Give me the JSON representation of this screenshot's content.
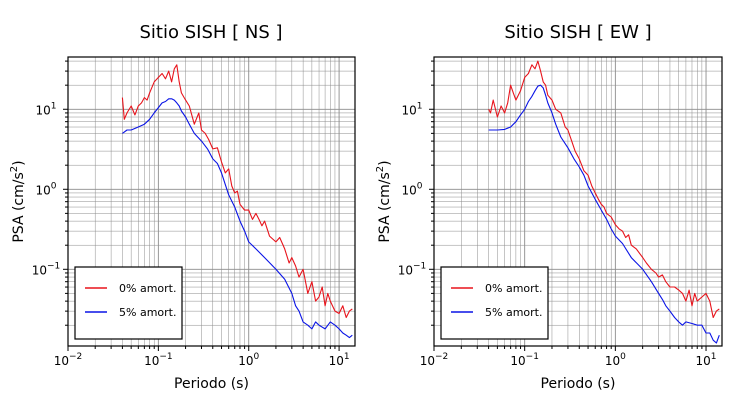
{
  "chart_data": [
    {
      "type": "line",
      "title": "Sitio SISH [ NS ]",
      "xlabel": "Periodo (s)",
      "ylabel_base": "PSA (cm/s",
      "ylabel_sup": "2",
      "ylabel_end": ")",
      "xscale": "log",
      "yscale": "log",
      "xlim": [
        0.01,
        15
      ],
      "ylim": [
        0.011,
        45
      ],
      "grid": true,
      "legend_position": "bottom-left",
      "x_ticks": [
        {
          "base": "10",
          "exp": "−2"
        },
        {
          "base": "10",
          "exp": "−1"
        },
        {
          "base": "10",
          "exp": "0"
        },
        {
          "base": "10",
          "exp": "1"
        }
      ],
      "y_ticks": [
        {
          "base": "10",
          "exp": "−1"
        },
        {
          "base": "10",
          "exp": "0"
        },
        {
          "base": "10",
          "exp": "1"
        }
      ],
      "series": [
        {
          "name": "0% amort.",
          "color": "#e8141c",
          "x": [
            0.04,
            0.042,
            0.045,
            0.05,
            0.055,
            0.06,
            0.065,
            0.07,
            0.075,
            0.08,
            0.09,
            0.1,
            0.11,
            0.12,
            0.13,
            0.14,
            0.15,
            0.16,
            0.17,
            0.18,
            0.2,
            0.22,
            0.25,
            0.28,
            0.3,
            0.33,
            0.36,
            0.4,
            0.45,
            0.5,
            0.55,
            0.6,
            0.65,
            0.7,
            0.75,
            0.8,
            0.9,
            1.0,
            1.1,
            1.2,
            1.3,
            1.4,
            1.5,
            1.7,
            2.0,
            2.2,
            2.5,
            2.8,
            3.0,
            3.3,
            3.6,
            4.0,
            4.5,
            5.0,
            5.5,
            6.0,
            6.5,
            7.0,
            7.5,
            8.0,
            9.0,
            10.0,
            11.0,
            12.0,
            13.0,
            14.0
          ],
          "y": [
            14,
            7.5,
            9,
            11,
            8.5,
            11,
            12,
            14,
            13,
            16,
            22,
            25,
            28,
            24,
            30,
            22,
            32,
            36,
            22,
            16,
            13,
            11,
            6.5,
            9,
            5.5,
            5,
            4.2,
            3.2,
            3.3,
            2.2,
            1.6,
            1.8,
            1.1,
            0.9,
            0.95,
            0.65,
            0.55,
            0.55,
            0.42,
            0.5,
            0.42,
            0.35,
            0.4,
            0.26,
            0.22,
            0.25,
            0.18,
            0.12,
            0.14,
            0.11,
            0.08,
            0.1,
            0.05,
            0.07,
            0.04,
            0.045,
            0.06,
            0.035,
            0.05,
            0.04,
            0.03,
            0.028,
            0.035,
            0.025,
            0.03,
            0.032
          ]
        },
        {
          "name": "5% amort.",
          "color": "#0a14e6",
          "x": [
            0.04,
            0.045,
            0.05,
            0.06,
            0.07,
            0.08,
            0.09,
            0.1,
            0.11,
            0.12,
            0.13,
            0.14,
            0.15,
            0.16,
            0.17,
            0.18,
            0.2,
            0.22,
            0.25,
            0.3,
            0.35,
            0.4,
            0.45,
            0.5,
            0.6,
            0.7,
            0.8,
            0.9,
            1.0,
            1.2,
            1.5,
            2.0,
            2.5,
            3.0,
            3.3,
            3.6,
            4.0,
            4.5,
            5.0,
            5.5,
            6.0,
            7.0,
            8.0,
            9.0,
            10.0,
            11.0,
            12.0,
            13.0,
            14.0
          ],
          "y": [
            5,
            5.5,
            5.5,
            6,
            6.5,
            7.5,
            9,
            10.5,
            12,
            12.5,
            13.5,
            13.5,
            13,
            12,
            11,
            9.5,
            8,
            6.5,
            5,
            4,
            3.2,
            2.4,
            2.1,
            1.6,
            0.85,
            0.6,
            0.4,
            0.3,
            0.22,
            0.18,
            0.14,
            0.1,
            0.075,
            0.05,
            0.035,
            0.03,
            0.022,
            0.02,
            0.018,
            0.022,
            0.02,
            0.018,
            0.022,
            0.02,
            0.018,
            0.016,
            0.015,
            0.014,
            0.015
          ]
        }
      ]
    },
    {
      "type": "line",
      "title": "Sitio SISH [ EW ]",
      "xlabel": "Periodo (s)",
      "ylabel_base": "PSA (cm/s",
      "ylabel_sup": "2",
      "ylabel_end": ")",
      "xscale": "log",
      "yscale": "log",
      "xlim": [
        0.01,
        15
      ],
      "ylim": [
        0.011,
        45
      ],
      "grid": true,
      "legend_position": "bottom-left",
      "x_ticks": [
        {
          "base": "10",
          "exp": "−2"
        },
        {
          "base": "10",
          "exp": "−1"
        },
        {
          "base": "10",
          "exp": "0"
        },
        {
          "base": "10",
          "exp": "1"
        }
      ],
      "y_ticks": [
        {
          "base": "10",
          "exp": "−1"
        },
        {
          "base": "10",
          "exp": "0"
        },
        {
          "base": "10",
          "exp": "1"
        }
      ],
      "series": [
        {
          "name": "0% amort.",
          "color": "#e8141c",
          "x": [
            0.04,
            0.042,
            0.045,
            0.05,
            0.055,
            0.06,
            0.065,
            0.07,
            0.075,
            0.08,
            0.09,
            0.1,
            0.11,
            0.12,
            0.13,
            0.14,
            0.15,
            0.16,
            0.17,
            0.18,
            0.2,
            0.22,
            0.25,
            0.28,
            0.3,
            0.33,
            0.36,
            0.4,
            0.45,
            0.5,
            0.55,
            0.6,
            0.65,
            0.7,
            0.75,
            0.8,
            0.9,
            1.0,
            1.1,
            1.2,
            1.3,
            1.4,
            1.5,
            1.7,
            2.0,
            2.2,
            2.5,
            2.8,
            3.0,
            3.3,
            3.6,
            4.0,
            4.5,
            5.0,
            5.5,
            6.0,
            6.5,
            7.0,
            7.5,
            8.0,
            9.0,
            10.0,
            11.0,
            12.0,
            13.0,
            14.0
          ],
          "y": [
            10,
            9,
            13,
            8,
            11,
            9,
            12,
            20,
            16,
            13,
            17,
            25,
            28,
            36,
            32,
            40,
            30,
            22,
            20,
            15,
            13,
            10,
            9,
            6,
            5.5,
            4,
            3,
            2.4,
            1.7,
            1.5,
            1.1,
            0.9,
            0.75,
            0.65,
            0.6,
            0.5,
            0.45,
            0.36,
            0.32,
            0.3,
            0.25,
            0.27,
            0.2,
            0.18,
            0.14,
            0.12,
            0.1,
            0.09,
            0.08,
            0.085,
            0.07,
            0.06,
            0.06,
            0.055,
            0.05,
            0.04,
            0.055,
            0.035,
            0.05,
            0.04,
            0.045,
            0.05,
            0.04,
            0.025,
            0.03,
            0.032
          ]
        },
        {
          "name": "5% amort.",
          "color": "#0a14e6",
          "x": [
            0.04,
            0.045,
            0.05,
            0.06,
            0.07,
            0.08,
            0.09,
            0.1,
            0.11,
            0.12,
            0.13,
            0.14,
            0.15,
            0.16,
            0.17,
            0.18,
            0.2,
            0.22,
            0.25,
            0.3,
            0.35,
            0.4,
            0.45,
            0.5,
            0.6,
            0.7,
            0.8,
            0.9,
            1.0,
            1.2,
            1.5,
            2.0,
            2.5,
            3.0,
            3.3,
            3.6,
            4.0,
            4.5,
            5.0,
            5.5,
            6.0,
            7.0,
            8.0,
            9.0,
            10.0,
            11.0,
            12.0,
            13.0,
            14.0
          ],
          "y": [
            5.5,
            5.5,
            5.5,
            5.6,
            6,
            7,
            8.5,
            10,
            12.5,
            14.5,
            17,
            19.5,
            20,
            18.5,
            15,
            12,
            9,
            6.5,
            4.5,
            3.3,
            2.4,
            1.9,
            1.5,
            1.1,
            0.75,
            0.55,
            0.42,
            0.32,
            0.26,
            0.21,
            0.14,
            0.1,
            0.07,
            0.05,
            0.042,
            0.035,
            0.03,
            0.025,
            0.022,
            0.02,
            0.022,
            0.021,
            0.02,
            0.02,
            0.016,
            0.016,
            0.013,
            0.012,
            0.015
          ]
        }
      ]
    }
  ]
}
